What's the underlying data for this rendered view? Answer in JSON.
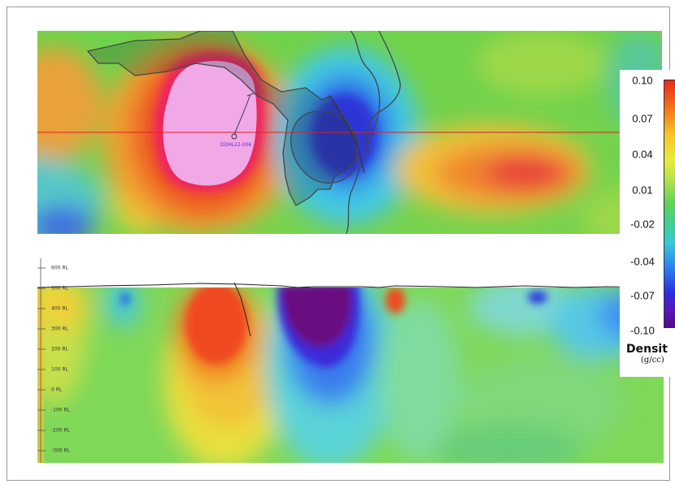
{
  "plan_map": {
    "drillhole_label": "DDHL22-006"
  },
  "section": {
    "elevation_labels": [
      "600 RL",
      "500 RL",
      "400 RL",
      "300 RL",
      "200 RL",
      "100 RL",
      "0 RL",
      "-100 RL",
      "-200 RL",
      "-300 RL"
    ]
  },
  "legend": {
    "title": "Densit",
    "unit": "(g/cc)",
    "ticks": [
      "0.10",
      "0.07",
      "0.04",
      "0.01",
      "-0.02",
      "-0.04",
      "-0.07",
      "-0.10"
    ],
    "colors": [
      "#e8281c",
      "#f57a19",
      "#f7c52a",
      "#e8eb3a",
      "#5fd25a",
      "#38c8d8",
      "#2d7ff0",
      "#2a2ee0",
      "#540a88"
    ]
  }
}
